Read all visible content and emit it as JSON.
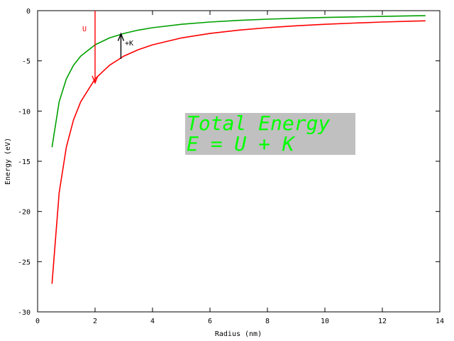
{
  "chart_data": {
    "type": "line",
    "xlabel": "Radius (nm)",
    "ylabel": "Energy (eV)",
    "xlim": [
      0,
      14
    ],
    "ylim": [
      -30,
      0
    ],
    "xticks": [
      0,
      2,
      4,
      6,
      8,
      10,
      12,
      14
    ],
    "yticks": [
      0,
      -5,
      -10,
      -15,
      -20,
      -25,
      -30
    ],
    "grid": false,
    "series": [
      {
        "color": "#00a000",
        "x": [
          0.5,
          0.75,
          1,
          1.25,
          1.5,
          2,
          2.5,
          3,
          3.5,
          4,
          5,
          6,
          7,
          8,
          9,
          10,
          11,
          12,
          13,
          13.5
        ],
        "y": [
          -13.6,
          -9.07,
          -6.8,
          -5.44,
          -4.53,
          -3.4,
          -2.72,
          -2.27,
          -1.94,
          -1.7,
          -1.36,
          -1.13,
          -0.97,
          -0.85,
          -0.76,
          -0.68,
          -0.62,
          -0.57,
          -0.52,
          -0.5
        ]
      },
      {
        "color": "#ff0000",
        "x": [
          0.5,
          0.75,
          1,
          1.25,
          1.5,
          2,
          2.5,
          3,
          3.5,
          4,
          5,
          6,
          7,
          8,
          9,
          10,
          11,
          12,
          13,
          13.5
        ],
        "y": [
          -27.2,
          -18.13,
          -13.6,
          -10.88,
          -9.07,
          -6.8,
          -5.44,
          -4.53,
          -3.89,
          -3.4,
          -2.72,
          -2.27,
          -1.94,
          -1.7,
          -1.51,
          -1.36,
          -1.24,
          -1.13,
          -1.05,
          -1.01
        ]
      }
    ],
    "annotations": {
      "u_label": "U",
      "k_label": "+K",
      "box_line1": "Total Energy",
      "box_line2": "E = U + K",
      "u_arrow": {
        "x": 2,
        "y_from": 0,
        "y_to": -7.2,
        "color": "#ff0000"
      },
      "k_arrow": {
        "x": 2.9,
        "y_from": -4.8,
        "y_to": -2.3,
        "color": "#000000"
      },
      "box_color": "#c0c0c0",
      "box_text_color": "#00ff00"
    }
  }
}
